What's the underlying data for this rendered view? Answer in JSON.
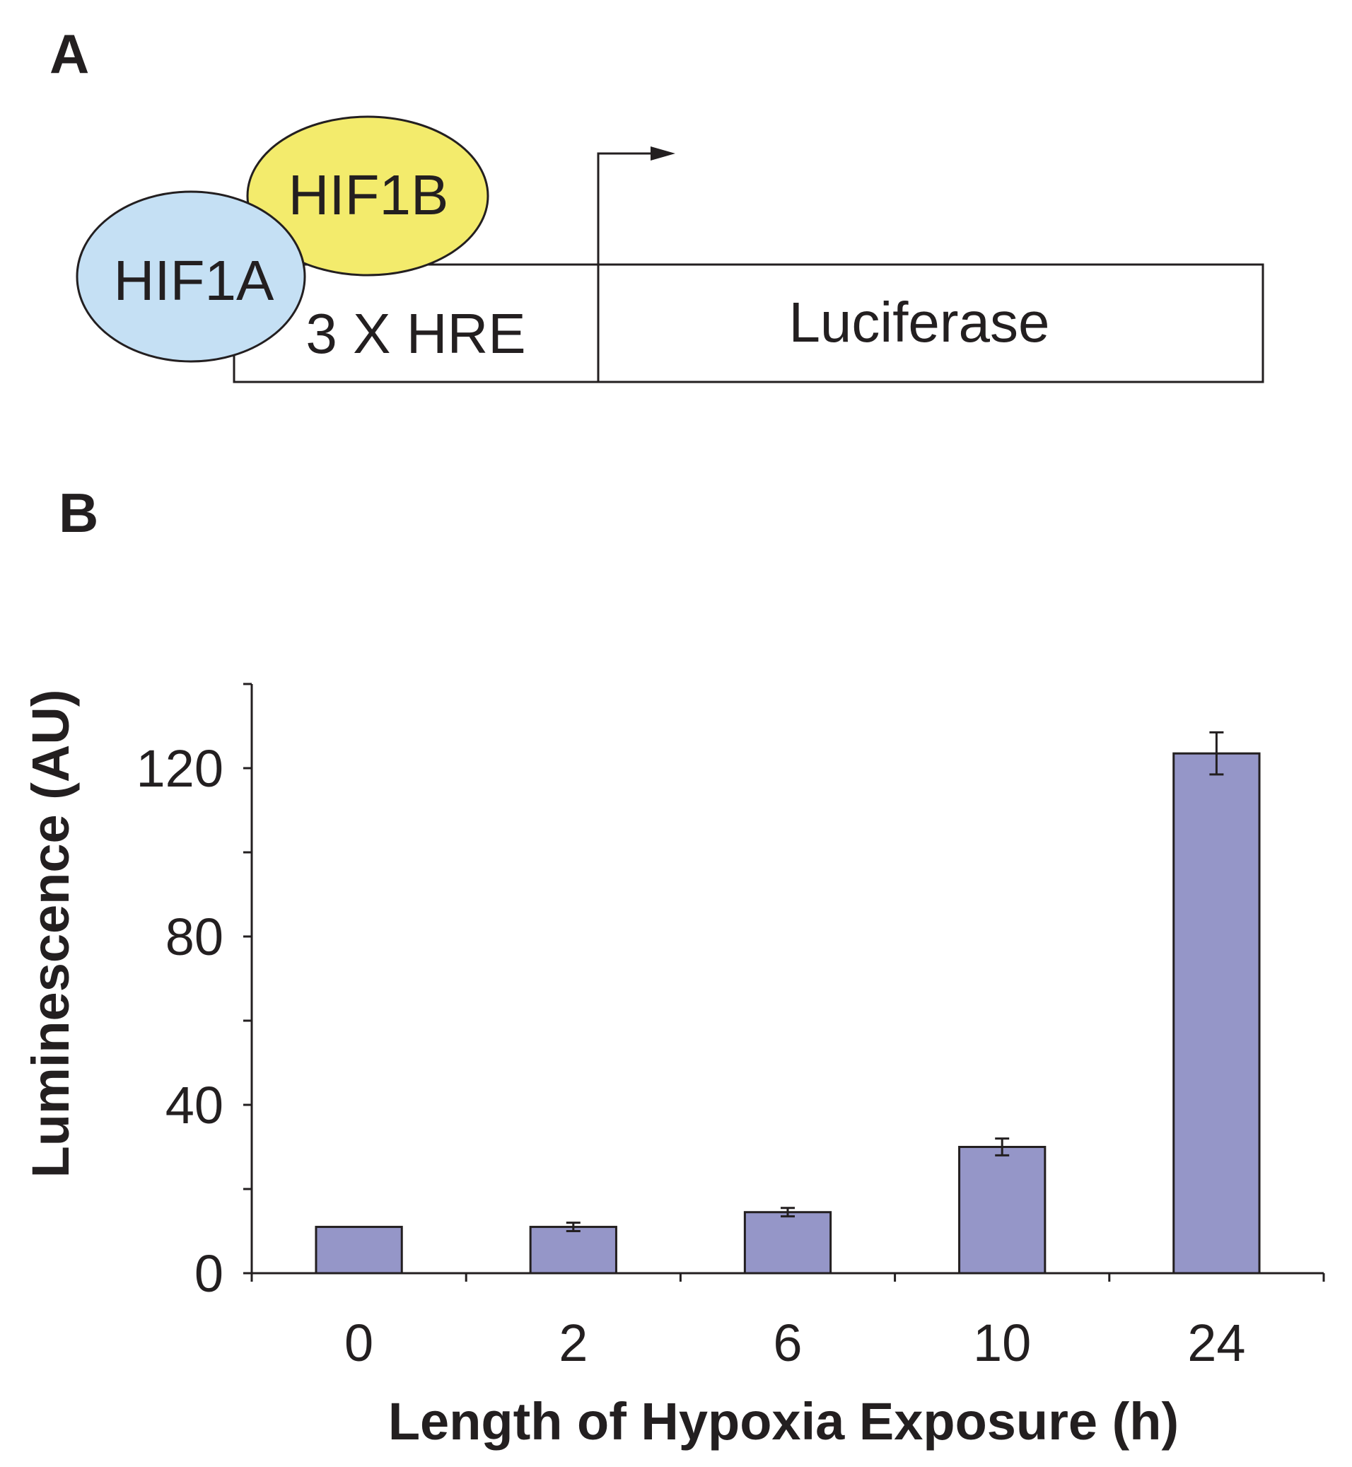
{
  "panel_a": {
    "label": "A",
    "protein_1": "HIF1A",
    "protein_2": "HIF1B",
    "promoter_label": "3 X HRE",
    "gene_label": "Luciferase",
    "colors": {
      "hif1a": "#c5e0f4",
      "hif1b": "#f3eb6c"
    }
  },
  "panel_b": {
    "label": "B"
  },
  "chart_data": {
    "type": "bar",
    "categories": [
      "0",
      "2",
      "6",
      "10",
      "24"
    ],
    "values": [
      11,
      11,
      14.5,
      30,
      123.5
    ],
    "errors": [
      0,
      1,
      1,
      2,
      5
    ],
    "title": "",
    "xlabel": "Length of Hypoxia Exposure (h)",
    "ylabel": "Luminescence (AU)",
    "ylim": [
      0,
      140
    ],
    "yticks": [
      0,
      40,
      80,
      120
    ],
    "grid": false,
    "bar_color": "#9596c8"
  }
}
